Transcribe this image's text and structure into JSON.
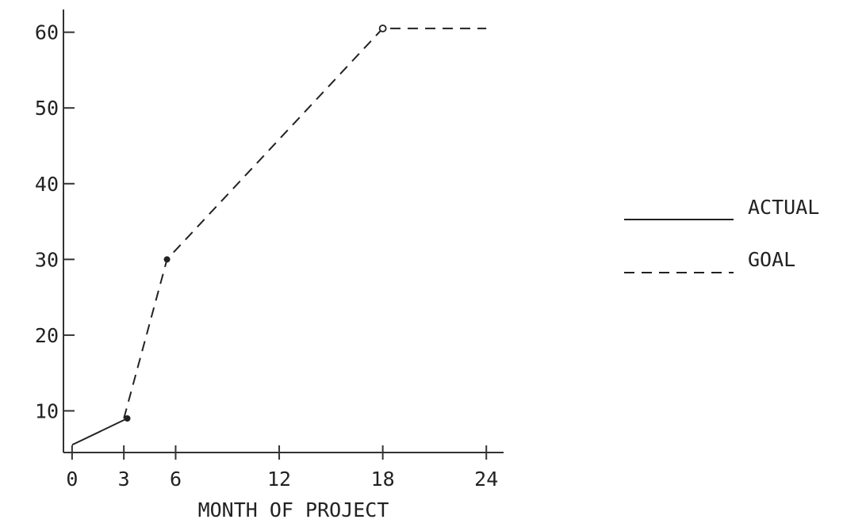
{
  "chart_data": {
    "type": "line",
    "title": "",
    "xlabel": "MONTH OF PROJECT",
    "ylabel": "",
    "x_ticks": [
      0,
      3,
      6,
      12,
      18,
      24
    ],
    "y_ticks": [
      10,
      20,
      30,
      40,
      50,
      60
    ],
    "xlim": [
      -0.5,
      25
    ],
    "ylim": [
      4.5,
      63
    ],
    "grid": false,
    "legend_position": "right",
    "series": [
      {
        "name": "ACTUAL",
        "style": "solid",
        "x": [
          0,
          3.2
        ],
        "y": [
          5.5,
          9
        ]
      },
      {
        "name": "GOAL",
        "style": "dashed",
        "x": [
          3,
          5.5,
          18,
          24
        ],
        "y": [
          9,
          30,
          60.5,
          60.5
        ]
      }
    ],
    "markers": [
      {
        "x": 3.2,
        "y": 9,
        "shape": "dot"
      },
      {
        "x": 5.5,
        "y": 30,
        "shape": "dot"
      },
      {
        "x": 18,
        "y": 60.5,
        "shape": "open-circle"
      }
    ]
  },
  "colors": {
    "ink": "#222222",
    "background": "#ffffff"
  }
}
